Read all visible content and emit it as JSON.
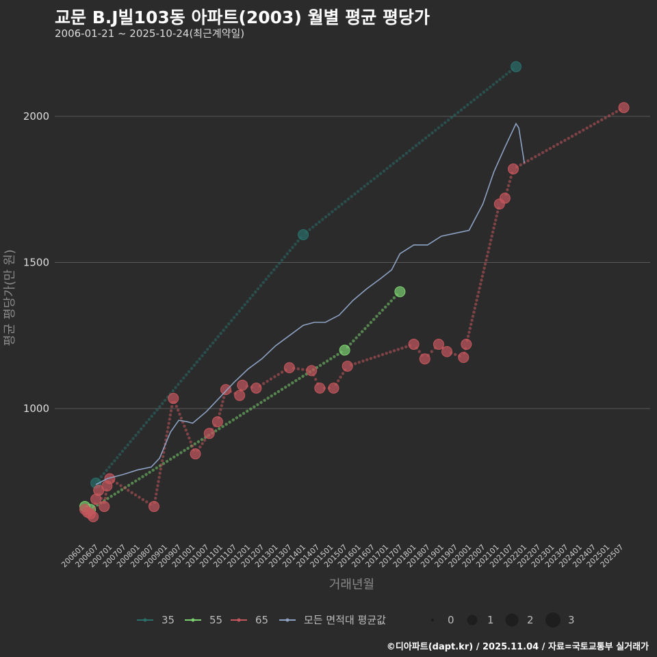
{
  "header": {
    "title": "교문 B.J빌103동 아파트(2003) 월별 평균 평당가",
    "subtitle": "2006-01-21 ~ 2025-10-24(최근계약일)"
  },
  "caption": "©디아파트(dapt.kr) / 2025.11.04 / 자료=국토교통부 실거래가",
  "colors": {
    "background": "#2b2b2c",
    "grid": "#5a5a5a",
    "s35": "#2a6f6a",
    "s55": "#7ccf6f",
    "s65": "#c4575c",
    "avg": "#8ea3c4"
  },
  "chart_data": {
    "type": "line",
    "title": "교문 B.J빌103동 아파트(2003) 월별 평균 평당가",
    "xlabel": "거래년월",
    "ylabel": "평균 평당가(만 원)",
    "ylim": [
      500,
      2200
    ],
    "yticks": [
      1000,
      1500,
      2000
    ],
    "xlim": [
      2006.0,
      2025.9
    ],
    "xticks": [
      "200601",
      "200607",
      "200701",
      "200707",
      "200801",
      "200807",
      "200901",
      "200907",
      "201001",
      "201007",
      "201101",
      "201107",
      "201201",
      "201207",
      "201301",
      "201307",
      "201401",
      "201407",
      "201501",
      "201507",
      "201601",
      "201607",
      "201701",
      "201707",
      "201801",
      "201807",
      "201901",
      "201907",
      "202001",
      "202007",
      "202101",
      "202107",
      "202201",
      "202207",
      "202301",
      "202307",
      "202401",
      "202407",
      "202501",
      "202507"
    ],
    "series": [
      {
        "name": "35",
        "color": "#2a6f6a",
        "points": [
          [
            2006.5,
            745
          ],
          [
            2014.0,
            1595
          ],
          [
            2021.7,
            2170
          ]
        ]
      },
      {
        "name": "55",
        "color": "#7ccf6f",
        "points": [
          [
            2006.1,
            665
          ],
          [
            2006.3,
            655
          ],
          [
            2015.5,
            1200
          ],
          [
            2017.5,
            1400
          ]
        ]
      },
      {
        "name": "65",
        "color": "#c4575c",
        "points": [
          [
            2006.1,
            655
          ],
          [
            2006.2,
            645
          ],
          [
            2006.3,
            640
          ],
          [
            2006.4,
            630
          ],
          [
            2006.5,
            690
          ],
          [
            2006.6,
            720
          ],
          [
            2006.8,
            665
          ],
          [
            2006.9,
            735
          ],
          [
            2007.0,
            760
          ],
          [
            2008.6,
            665
          ],
          [
            2009.3,
            1035
          ],
          [
            2010.1,
            845
          ],
          [
            2010.6,
            915
          ],
          [
            2010.9,
            955
          ],
          [
            2011.2,
            1065
          ],
          [
            2011.7,
            1045
          ],
          [
            2011.8,
            1080
          ],
          [
            2012.3,
            1070
          ],
          [
            2013.5,
            1140
          ],
          [
            2014.3,
            1130
          ],
          [
            2014.6,
            1070
          ],
          [
            2015.1,
            1070
          ],
          [
            2015.6,
            1145
          ],
          [
            2018.0,
            1220
          ],
          [
            2018.4,
            1170
          ],
          [
            2018.9,
            1220
          ],
          [
            2019.2,
            1195
          ],
          [
            2019.8,
            1175
          ],
          [
            2019.9,
            1220
          ],
          [
            2021.1,
            1700
          ],
          [
            2021.3,
            1720
          ],
          [
            2021.6,
            1820
          ],
          [
            2025.6,
            2030
          ]
        ]
      },
      {
        "name": "모든 면적대 평균값",
        "color": "#8ea3c4",
        "points": [
          [
            2006.5,
            740
          ],
          [
            2006.9,
            760
          ],
          [
            2007.5,
            775
          ],
          [
            2008.0,
            790
          ],
          [
            2008.5,
            800
          ],
          [
            2008.8,
            830
          ],
          [
            2009.2,
            920
          ],
          [
            2009.5,
            960
          ],
          [
            2009.8,
            955
          ],
          [
            2010.0,
            950
          ],
          [
            2010.5,
            990
          ],
          [
            2011.0,
            1040
          ],
          [
            2011.5,
            1090
          ],
          [
            2012.0,
            1135
          ],
          [
            2012.5,
            1170
          ],
          [
            2013.0,
            1215
          ],
          [
            2013.5,
            1250
          ],
          [
            2014.0,
            1285
          ],
          [
            2014.4,
            1295
          ],
          [
            2014.8,
            1295
          ],
          [
            2015.3,
            1320
          ],
          [
            2015.8,
            1370
          ],
          [
            2016.3,
            1410
          ],
          [
            2016.8,
            1445
          ],
          [
            2017.2,
            1475
          ],
          [
            2017.5,
            1530
          ],
          [
            2018.0,
            1560
          ],
          [
            2018.5,
            1560
          ],
          [
            2019.0,
            1590
          ],
          [
            2019.5,
            1600
          ],
          [
            2020.0,
            1610
          ],
          [
            2020.5,
            1700
          ],
          [
            2020.9,
            1810
          ],
          [
            2021.3,
            1895
          ],
          [
            2021.7,
            1975
          ],
          [
            2021.8,
            1960
          ],
          [
            2022.0,
            1840
          ]
        ]
      }
    ],
    "legend": {
      "position": "bottom",
      "series_labels": [
        "35",
        "55",
        "65",
        "모든 면적대 평균값"
      ],
      "size_labels": [
        "0",
        "1",
        "2",
        "3"
      ]
    }
  }
}
